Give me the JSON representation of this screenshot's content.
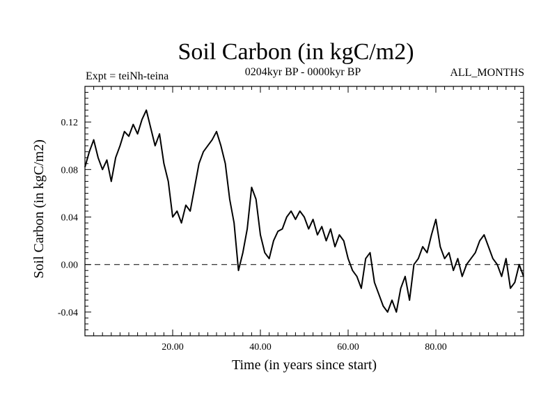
{
  "header": {
    "title": "Soil Carbon (in kgC/m2)",
    "subtitle": "0204kyr BP - 0000kyr BP",
    "expt": "Expt = teiNh-teina",
    "months": "ALL_MONTHS"
  },
  "chart_data": {
    "type": "line",
    "title": "Soil Carbon (in kgC/m2)",
    "subtitle": "0204kyr BP - 0000kyr BP",
    "xlabel": "Time (in years since start)",
    "ylabel": "Soil Carbon (in kgC/m2)",
    "xlim": [
      0,
      100
    ],
    "ylim": [
      -0.06,
      0.15
    ],
    "x_ticks": [
      20,
      40,
      60,
      80
    ],
    "x_tick_labels": [
      "20.00",
      "40.00",
      "60.00",
      "80.00"
    ],
    "y_ticks": [
      -0.04,
      0.0,
      0.04,
      0.08,
      0.12
    ],
    "y_tick_labels": [
      "-0.04",
      "0.00",
      "0.04",
      "0.08",
      "0.12"
    ],
    "reference_line": {
      "y": 0.0,
      "style": "dashed"
    },
    "grid": false,
    "series": [
      {
        "x": [
          0,
          1,
          2,
          3,
          4,
          5,
          6,
          7,
          8,
          9,
          10,
          11,
          12,
          13,
          14,
          15,
          16,
          17,
          18,
          19,
          20,
          21,
          22,
          23,
          24,
          25,
          26,
          27,
          28,
          29,
          30,
          31,
          32,
          33,
          34,
          35,
          36,
          37,
          38,
          39,
          40,
          41,
          42,
          43,
          44,
          45,
          46,
          47,
          48,
          49,
          50,
          51,
          52,
          53,
          54,
          55,
          56,
          57,
          58,
          59,
          60,
          61,
          62,
          63,
          64,
          65,
          66,
          67,
          68,
          69,
          70,
          71,
          72,
          73,
          74,
          75,
          76,
          77,
          78,
          79,
          80,
          81,
          82,
          83,
          84,
          85,
          86,
          87,
          88,
          89,
          90,
          91,
          92,
          93,
          94,
          95,
          96,
          97,
          98,
          99,
          100
        ],
        "values": [
          0.082,
          0.095,
          0.105,
          0.09,
          0.08,
          0.088,
          0.07,
          0.09,
          0.1,
          0.112,
          0.108,
          0.118,
          0.11,
          0.122,
          0.13,
          0.115,
          0.1,
          0.11,
          0.085,
          0.07,
          0.04,
          0.045,
          0.035,
          0.05,
          0.045,
          0.065,
          0.085,
          0.095,
          0.1,
          0.105,
          0.112,
          0.1,
          0.085,
          0.055,
          0.035,
          -0.005,
          0.01,
          0.03,
          0.065,
          0.055,
          0.025,
          0.01,
          0.005,
          0.02,
          0.028,
          0.03,
          0.04,
          0.045,
          0.038,
          0.045,
          0.04,
          0.03,
          0.038,
          0.025,
          0.032,
          0.02,
          0.03,
          0.015,
          0.025,
          0.02,
          0.005,
          -0.005,
          -0.01,
          -0.02,
          0.005,
          0.01,
          -0.015,
          -0.025,
          -0.035,
          -0.04,
          -0.03,
          -0.04,
          -0.02,
          -0.01,
          -0.03,
          0.0,
          0.005,
          0.015,
          0.01,
          0.025,
          0.038,
          0.015,
          0.005,
          0.01,
          -0.005,
          0.005,
          -0.01,
          0.0,
          0.005,
          0.01,
          0.02,
          0.025,
          0.015,
          0.005,
          0.0,
          -0.01,
          0.005,
          -0.02,
          -0.015,
          0.0,
          -0.01
        ]
      }
    ]
  }
}
